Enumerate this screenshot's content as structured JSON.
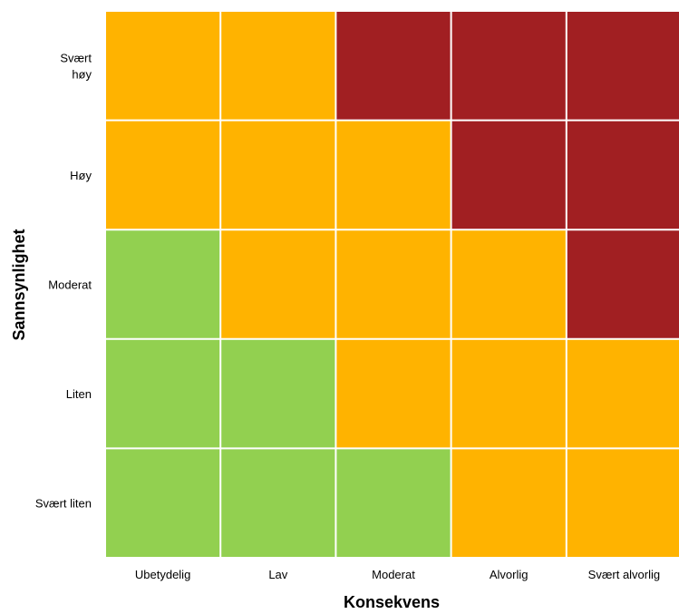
{
  "chart_data": {
    "type": "heatmap",
    "xlabel": "Konsekvens",
    "ylabel": "Sannsynlighet",
    "x_categories": [
      "Ubetydelig",
      "Lav",
      "Moderat",
      "Alvorlig",
      "Svært alvorlig"
    ],
    "y_categories": [
      [
        "Svært",
        "høy"
      ],
      [
        "Høy"
      ],
      [
        "Moderat"
      ],
      [
        "Liten"
      ],
      [
        "Svært liten"
      ]
    ],
    "levels": {
      "low": "#92d050",
      "medium": "#ffb300",
      "high": "#a11f22"
    },
    "cells": [
      [
        "medium",
        "medium",
        "high",
        "high",
        "high"
      ],
      [
        "medium",
        "medium",
        "medium",
        "high",
        "high"
      ],
      [
        "low",
        "medium",
        "medium",
        "medium",
        "high"
      ],
      [
        "low",
        "low",
        "medium",
        "medium",
        "medium"
      ],
      [
        "low",
        "low",
        "low",
        "medium",
        "medium"
      ]
    ],
    "grid_line_color": "#ffffff"
  }
}
